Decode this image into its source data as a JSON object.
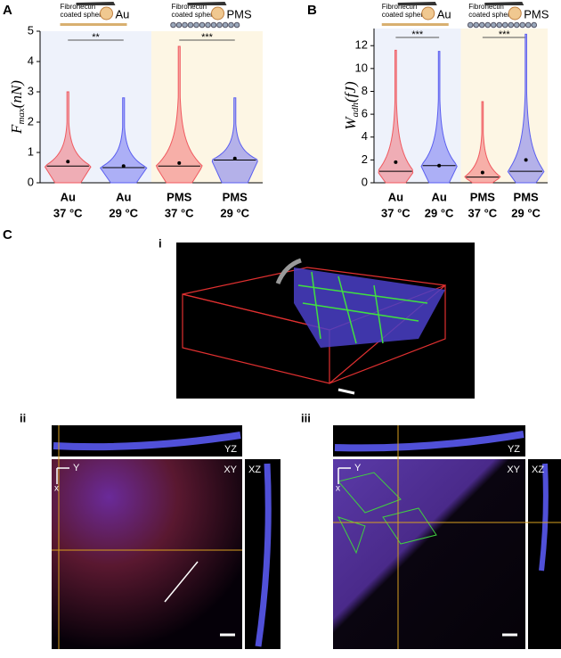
{
  "chart_data": [
    {
      "type": "violin",
      "panel": "A",
      "headers": [
        {
          "caption": [
            "Fibronectin",
            "coated sphere"
          ],
          "material": "Au"
        },
        {
          "caption": [
            "Fibronectin",
            "coated sphere"
          ],
          "material": "PMS"
        }
      ],
      "ylabel": {
        "symbol": "F",
        "subscript": "max",
        "unit": "(nN)"
      },
      "categories": [
        [
          "Au",
          "37 °C"
        ],
        [
          "Au",
          "29 °C"
        ],
        [
          "PMS",
          "37 °C"
        ],
        [
          "PMS",
          "29 °C"
        ]
      ],
      "colors": [
        "#f0595f",
        "#5a5ef0",
        "#f0595f",
        "#5a5ef0"
      ],
      "medians": [
        0.55,
        0.5,
        0.55,
        0.75
      ],
      "means": [
        0.7,
        0.55,
        0.65,
        0.8
      ],
      "maxima": [
        3.0,
        2.8,
        4.5,
        2.8
      ],
      "significance": [
        "**",
        "***"
      ],
      "ylim": [
        0,
        5
      ],
      "yticks": [
        0,
        1,
        2,
        3,
        4,
        5
      ]
    },
    {
      "type": "violin",
      "panel": "B",
      "headers": [
        {
          "caption": [
            "Fibronectin",
            "coated sphere"
          ],
          "material": "Au"
        },
        {
          "caption": [
            "Fibronectin",
            "coated sphere"
          ],
          "material": "PMS"
        }
      ],
      "ylabel": {
        "symbol": "W",
        "subscript": "adh",
        "unit": "(fJ)"
      },
      "categories": [
        [
          "Au",
          "37 °C"
        ],
        [
          "Au",
          "29 °C"
        ],
        [
          "PMS",
          "37 °C"
        ],
        [
          "PMS",
          "29 °C"
        ]
      ],
      "colors": [
        "#f0595f",
        "#5a5ef0",
        "#f0595f",
        "#5a5ef0"
      ],
      "medians": [
        1.0,
        1.5,
        0.5,
        1.0
      ],
      "means": [
        1.8,
        1.5,
        0.9,
        2.0
      ],
      "maxima": [
        11.6,
        11.5,
        7.1,
        13.0
      ],
      "significance": [
        "***",
        "***"
      ],
      "ylim": [
        0,
        13.5
      ],
      "yticks": [
        0,
        2,
        4,
        6,
        8,
        10,
        12
      ]
    }
  ],
  "panel_c": {
    "label": "C",
    "views": [
      {
        "label": "i"
      },
      {
        "label": "ii",
        "planes": [
          "YZ",
          "XY",
          "XZ"
        ],
        "axes": [
          "Y",
          "x"
        ]
      },
      {
        "label": "iii",
        "planes": [
          "YZ",
          "XY",
          "XZ"
        ],
        "axes": [
          "Y",
          "x"
        ]
      }
    ]
  }
}
